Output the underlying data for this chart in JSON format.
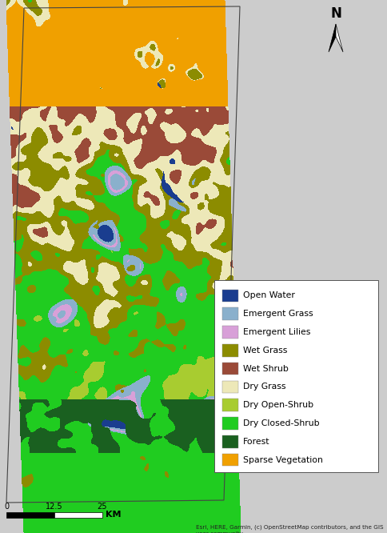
{
  "figure_width": 4.84,
  "figure_height": 6.66,
  "dpi": 100,
  "outer_bg": "#c8c8c8",
  "legend_items": [
    {
      "label": "Open Water",
      "color": "#1a3d8f"
    },
    {
      "label": "Emergent Grass",
      "color": "#8ab0cc"
    },
    {
      "label": "Emergent Lilies",
      "color": "#d8a0d8"
    },
    {
      "label": "Wet Grass",
      "color": "#8c8c00"
    },
    {
      "label": "Wet Shrub",
      "color": "#9a4a38"
    },
    {
      "label": "Dry Grass",
      "color": "#ede8b8"
    },
    {
      "label": "Dry Open-Shrub",
      "color": "#a8cc30"
    },
    {
      "label": "Dry Closed-Shrub",
      "color": "#20cc20"
    },
    {
      "label": "Forest",
      "color": "#1a6020"
    },
    {
      "label": "Sparse Vegetation",
      "color": "#f0a000"
    }
  ],
  "scalebar_ticks": [
    "0",
    "12.5",
    "25"
  ],
  "scalebar_label": "KM",
  "attribution": "Esri, HERE, Garmin, (c) OpenStreetMap contributors, and the GIS\nuser community"
}
